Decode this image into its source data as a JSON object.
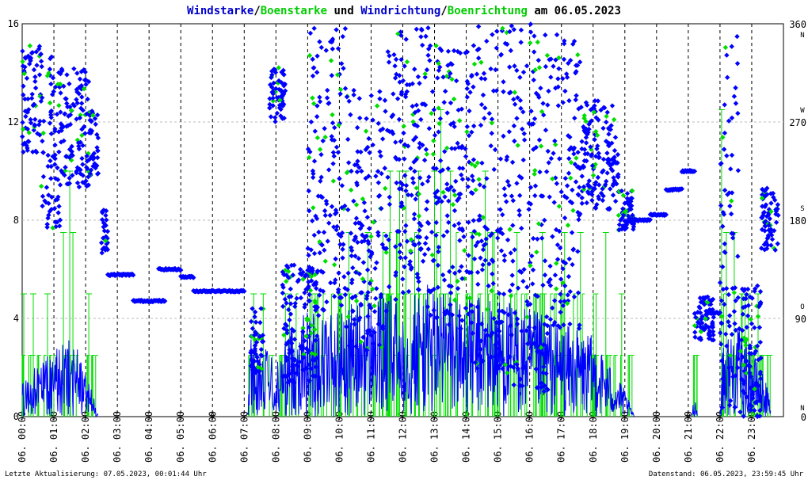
{
  "chart_data": {
    "type": "line+scatter",
    "title_parts": {
      "p1": "Windstarke",
      "sep1": "/",
      "p2": "Boenstarke",
      "p3": " und ",
      "p4": "Windrichtung",
      "sep2": "/",
      "p5": "Boenrichtung",
      "p6": " am 06.05.2023"
    },
    "colors": {
      "wind": "#0000ff",
      "gust": "#00dd00",
      "axis": "#000000",
      "grid": "#000000",
      "hgrid": "#bbbbbb",
      "title_text": "#000000"
    },
    "left_axis": {
      "min": 0,
      "max": 16,
      "ticks": [
        "0",
        "4",
        "8",
        "12",
        "16"
      ]
    },
    "right_axis": {
      "min": 0,
      "max": 360,
      "ticks": [
        "0",
        "90",
        "180",
        "270",
        "360"
      ],
      "compass": [
        "N",
        "O",
        "S",
        "W",
        "N"
      ]
    },
    "x_axis": {
      "range_hours": [
        0,
        24
      ],
      "tick_labels": [
        "06. 00:00",
        "06. 01:00",
        "06. 02:00",
        "06. 03:00",
        "06. 04:00",
        "06. 05:00",
        "06. 06:00",
        "06. 07:00",
        "06. 08:00",
        "06. 09:00",
        "06. 10:00",
        "06. 11:00",
        "06. 12:00",
        "06. 13:00",
        "06. 14:00",
        "06. 15:00",
        "06. 16:00",
        "06. 17:00",
        "06. 18:00",
        "06. 19:00",
        "06. 20:00",
        "06. 21:00",
        "06. 22:00",
        "06. 23:00"
      ],
      "missing_marks": [
        {
          "hour": 6.0,
          "label": "0"
        },
        {
          "hour": 21.0,
          "label": "0"
        }
      ]
    },
    "wind_speed_envelope": [
      {
        "t": 0.0,
        "v": 1.5
      },
      {
        "t": 0.5,
        "v": 2.0
      },
      {
        "t": 1.0,
        "v": 2.5
      },
      {
        "t": 1.6,
        "v": 3.0
      },
      {
        "t": 1.9,
        "v": 2.0
      },
      {
        "t": 2.2,
        "v": 1.0
      },
      {
        "t": 2.4,
        "v": 0.0
      },
      {
        "t": 7.1,
        "v": 0.0
      },
      {
        "t": 7.2,
        "v": 3.0
      },
      {
        "t": 7.7,
        "v": 2.5
      },
      {
        "t": 8.0,
        "v": 2.0
      },
      {
        "t": 8.5,
        "v": 3.5
      },
      {
        "t": 9.0,
        "v": 4.0
      },
      {
        "t": 10.0,
        "v": 4.0
      },
      {
        "t": 11.0,
        "v": 4.5
      },
      {
        "t": 12.0,
        "v": 4.5
      },
      {
        "t": 13.0,
        "v": 5.0
      },
      {
        "t": 14.0,
        "v": 4.5
      },
      {
        "t": 15.0,
        "v": 4.5
      },
      {
        "t": 16.0,
        "v": 4.0
      },
      {
        "t": 17.0,
        "v": 3.5
      },
      {
        "t": 18.0,
        "v": 3.0
      },
      {
        "t": 18.5,
        "v": 2.0
      },
      {
        "t": 19.0,
        "v": 1.0
      },
      {
        "t": 19.3,
        "v": 0.0
      },
      {
        "t": 21.1,
        "v": 0.0
      },
      {
        "t": 21.2,
        "v": 1.0
      },
      {
        "t": 21.3,
        "v": 0.0
      },
      {
        "t": 22.0,
        "v": 0.0
      },
      {
        "t": 22.1,
        "v": 3.0
      },
      {
        "t": 22.5,
        "v": 3.5
      },
      {
        "t": 23.0,
        "v": 2.5
      },
      {
        "t": 23.4,
        "v": 1.5
      },
      {
        "t": 23.6,
        "v": 0.5
      }
    ],
    "gust_levels": [
      0,
      2.5,
      5,
      7.5,
      10,
      12.5
    ],
    "gust_spikes": [
      {
        "t": 0.05,
        "v": 5
      },
      {
        "t": 0.35,
        "v": 5
      },
      {
        "t": 0.8,
        "v": 5
      },
      {
        "t": 1.3,
        "v": 7.5
      },
      {
        "t": 1.5,
        "v": 10
      },
      {
        "t": 1.6,
        "v": 7.5
      },
      {
        "t": 2.1,
        "v": 5
      },
      {
        "t": 7.3,
        "v": 5
      },
      {
        "t": 7.6,
        "v": 5
      },
      {
        "t": 8.3,
        "v": 5
      },
      {
        "t": 9.3,
        "v": 5
      },
      {
        "t": 10.3,
        "v": 7.5
      },
      {
        "t": 10.9,
        "v": 7.5
      },
      {
        "t": 11.6,
        "v": 10
      },
      {
        "t": 11.9,
        "v": 10
      },
      {
        "t": 12.1,
        "v": 10
      },
      {
        "t": 12.5,
        "v": 10
      },
      {
        "t": 13.0,
        "v": 10
      },
      {
        "t": 13.2,
        "v": 12.5
      },
      {
        "t": 13.5,
        "v": 10
      },
      {
        "t": 14.2,
        "v": 7.5
      },
      {
        "t": 14.6,
        "v": 10
      },
      {
        "t": 15.6,
        "v": 7.5
      },
      {
        "t": 16.4,
        "v": 7.5
      },
      {
        "t": 17.1,
        "v": 7.5
      },
      {
        "t": 17.6,
        "v": 7.5
      },
      {
        "t": 18.4,
        "v": 7.5
      },
      {
        "t": 18.9,
        "v": 5
      },
      {
        "t": 22.05,
        "v": 12.5
      },
      {
        "t": 22.2,
        "v": 7.5
      },
      {
        "t": 22.45,
        "v": 7.5
      },
      {
        "t": 22.7,
        "v": 5
      },
      {
        "t": 23.2,
        "v": 5
      },
      {
        "t": 23.5,
        "v": 2.5
      }
    ],
    "direction_clusters": [
      {
        "t0": 0.0,
        "t1": 0.6,
        "d0": 240,
        "d1": 340
      },
      {
        "t0": 0.6,
        "t1": 1.2,
        "d0": 170,
        "d1": 330
      },
      {
        "t0": 1.2,
        "t1": 2.1,
        "d0": 210,
        "d1": 320
      },
      {
        "t0": 2.1,
        "t1": 2.4,
        "d0": 220,
        "d1": 280
      },
      {
        "t0": 2.5,
        "t1": 2.7,
        "d0": 150,
        "d1": 190
      },
      {
        "t0": 7.2,
        "t1": 7.6,
        "d0": 40,
        "d1": 100
      },
      {
        "t0": 7.8,
        "t1": 8.3,
        "d0": 270,
        "d1": 320
      },
      {
        "t0": 8.2,
        "t1": 9.3,
        "d0": 30,
        "d1": 140
      },
      {
        "t0": 9.0,
        "t1": 10.2,
        "d0": 90,
        "d1": 360
      },
      {
        "t0": 10.2,
        "t1": 11.5,
        "d0": 60,
        "d1": 300
      },
      {
        "t0": 11.5,
        "t1": 12.8,
        "d0": 100,
        "d1": 360
      },
      {
        "t0": 12.8,
        "t1": 14.2,
        "d0": 80,
        "d1": 340
      },
      {
        "t0": 14.2,
        "t1": 15.5,
        "d0": 40,
        "d1": 360
      },
      {
        "t0": 15.5,
        "t1": 16.6,
        "d0": 20,
        "d1": 360
      },
      {
        "t0": 16.6,
        "t1": 17.6,
        "d0": 80,
        "d1": 350
      },
      {
        "t0": 17.6,
        "t1": 18.8,
        "d0": 190,
        "d1": 290
      },
      {
        "t0": 18.8,
        "t1": 19.3,
        "d0": 170,
        "d1": 210
      },
      {
        "t0": 21.2,
        "t1": 21.8,
        "d0": 70,
        "d1": 110
      },
      {
        "t0": 22.0,
        "t1": 22.6,
        "d0": 0,
        "d1": 360
      },
      {
        "t0": 22.6,
        "t1": 23.3,
        "d0": 0,
        "d1": 120
      },
      {
        "t0": 23.3,
        "t1": 23.85,
        "d0": 150,
        "d1": 210
      }
    ],
    "direction_segments": [
      {
        "t0": 2.7,
        "t1": 3.5,
        "d": 130
      },
      {
        "t0": 3.5,
        "t1": 4.5,
        "d": 106
      },
      {
        "t0": 4.3,
        "t1": 5.0,
        "d": 135
      },
      {
        "t0": 5.0,
        "t1": 5.4,
        "d": 128
      },
      {
        "t0": 5.4,
        "t1": 7.0,
        "d": 115
      },
      {
        "t0": 19.2,
        "t1": 19.8,
        "d": 180
      },
      {
        "t0": 19.8,
        "t1": 20.3,
        "d": 185
      },
      {
        "t0": 20.3,
        "t1": 20.8,
        "d": 208
      },
      {
        "t0": 20.8,
        "t1": 21.2,
        "d": 225
      },
      {
        "t0": 21.6,
        "t1": 22.0,
        "d": 95
      }
    ],
    "footer": {
      "left": "Letzte Aktualisierung: 07.05.2023, 00:01:44 Uhr",
      "right": "Datenstand: 06.05.2023, 23:59:45 Uhr"
    }
  }
}
